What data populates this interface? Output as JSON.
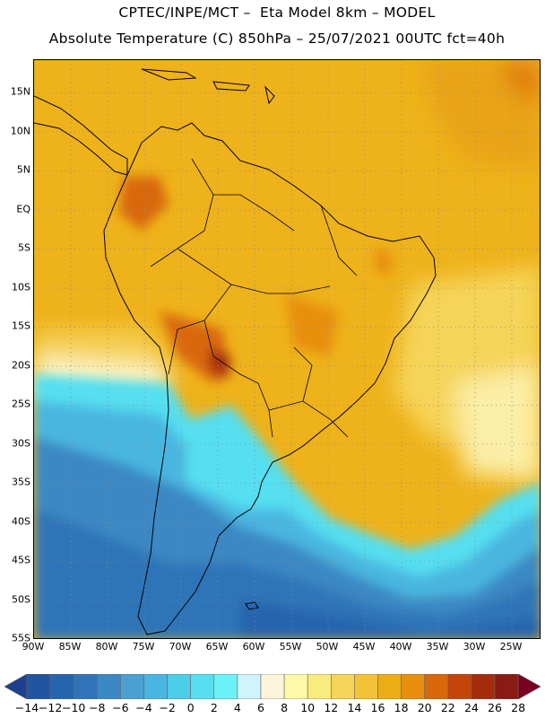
{
  "title_line1": "CPTEC/INPE/MCT –  Eta Model 8km – MODEL",
  "title_line2": "Absolute Temperature (C) 850hPa – 25/07/2021 00UTC fct=40h",
  "map": {
    "variable": "Absolute Temperature (C)",
    "level": "850hPa",
    "region": "South America",
    "latitude_labels": [
      "15N",
      "10N",
      "5N",
      "EQ",
      "5S",
      "10S",
      "15S",
      "20S",
      "25S",
      "30S",
      "35S",
      "40S",
      "45S",
      "50S",
      "55S"
    ],
    "longitude_labels": [
      "90W",
      "85W",
      "80W",
      "75W",
      "70W",
      "65W",
      "60W",
      "55W",
      "50W",
      "45W",
      "40W",
      "35W",
      "30W",
      "25W"
    ],
    "grid": "dotted"
  },
  "colorbar": {
    "labels": [
      "-14",
      "-12",
      "-10",
      "-8",
      "-6",
      "-4",
      "-2",
      "0",
      "2",
      "4",
      "6",
      "8",
      "10",
      "12",
      "14",
      "16",
      "18",
      "20",
      "22",
      "24",
      "26",
      "28"
    ],
    "colors": [
      "#2255a0",
      "#2565ad",
      "#2f74b8",
      "#3a88c4",
      "#4aa0d0",
      "#48b6e0",
      "#4ccde8",
      "#55dff0",
      "#6af2f7",
      "#cff4fb",
      "#fdf5da",
      "#fdf9a6",
      "#f9eb7e",
      "#f6d458",
      "#f2c336",
      "#ecae14",
      "#e88f0e",
      "#d9670b",
      "#c54409",
      "#a52c0a",
      "#8a1a14"
    ],
    "under_color": "#1d3f8f",
    "over_color": "#7a0022"
  }
}
